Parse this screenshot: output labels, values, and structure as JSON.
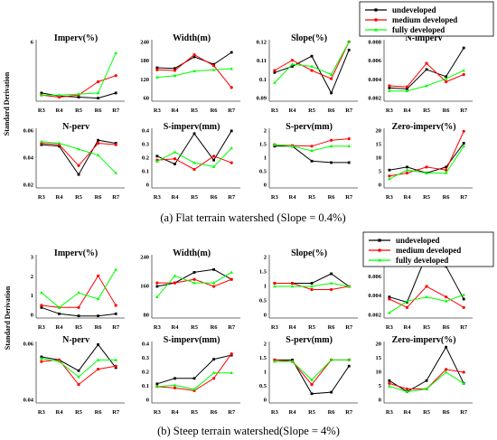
{
  "figure": {
    "sections": [
      {
        "caption": "(a) Flat terrain watershed (Slope = 0.4%)",
        "ylabel": "Standard Derivation"
      },
      {
        "caption": "(b) Steep terrain watershed(Slope = 4%)",
        "ylabel": "Standard Derivation"
      }
    ]
  },
  "colors": {
    "undeveloped": "#000000",
    "medium developed": "#ff0000",
    "fully developed": "#00ff00"
  },
  "chart_data": [
    {
      "section": 0,
      "type": "line",
      "title": "Imperv(%)",
      "categories": [
        "R3",
        "R4",
        "R5",
        "R6",
        "R7"
      ],
      "yticks": [
        "6"
      ],
      "ylim": [
        0,
        6
      ],
      "series": [
        {
          "name": "undeveloped",
          "values": [
            0.8,
            0.5,
            0.4,
            0.3,
            0.8
          ]
        },
        {
          "name": "medium developed",
          "values": [
            0.6,
            0.4,
            0.6,
            1.9,
            2.5
          ]
        },
        {
          "name": "fully developed",
          "values": [
            0.6,
            0.6,
            0.7,
            0.8,
            4.7
          ]
        }
      ]
    },
    {
      "section": 0,
      "type": "line",
      "title": "Width(m)",
      "categories": [
        "R3",
        "R4",
        "R5",
        "R6",
        "R7"
      ],
      "yticks": [
        "240",
        "180",
        "120",
        "60"
      ],
      "ylim": [
        60,
        240
      ],
      "series": [
        {
          "name": "undeveloped",
          "values": [
            158,
            156,
            190,
            168,
            203
          ]
        },
        {
          "name": "medium developed",
          "values": [
            152,
            150,
            196,
            164,
            100
          ]
        },
        {
          "name": "fully developed",
          "values": [
            130,
            135,
            148,
            152,
            155
          ]
        }
      ]
    },
    {
      "section": 0,
      "type": "line",
      "title": "Slope(%)",
      "categories": [
        "R3",
        "R4",
        "R5",
        "R6",
        "R7"
      ],
      "yticks": [
        "0.12",
        "0.11",
        "0.1",
        "0.09"
      ],
      "ylim": [
        0.09,
        0.12
      ],
      "series": [
        {
          "name": "undeveloped",
          "values": [
            0.104,
            0.107,
            0.112,
            0.094,
            0.115
          ]
        },
        {
          "name": "medium developed",
          "values": [
            0.105,
            0.11,
            0.105,
            0.101,
            0.119
          ]
        },
        {
          "name": "fully developed",
          "values": [
            0.099,
            0.108,
            0.107,
            0.103,
            0.119
          ]
        }
      ]
    },
    {
      "section": 0,
      "type": "line",
      "title": "N-imperv",
      "categories": [
        "R3",
        "R4",
        "R5",
        "R6",
        "R7"
      ],
      "yticks": [
        "0.008",
        "0.006",
        "0.004",
        "0.002"
      ],
      "ylim": [
        0.002,
        0.008
      ],
      "series": [
        {
          "name": "undeveloped",
          "values": [
            0.0033,
            0.0032,
            0.0051,
            0.0044,
            0.0072
          ]
        },
        {
          "name": "medium developed",
          "values": [
            0.0035,
            0.0034,
            0.0057,
            0.0039,
            0.0046
          ]
        },
        {
          "name": "fully developed",
          "values": [
            0.003,
            0.003,
            0.0035,
            0.0042,
            0.005
          ]
        }
      ]
    },
    {
      "section": 0,
      "type": "line",
      "title": "N-perv",
      "categories": [
        "R3",
        "R4",
        "R5",
        "R6",
        "R7"
      ],
      "yticks": [
        "0.06",
        "0.04",
        "0.02"
      ],
      "ylim": [
        0.02,
        0.06
      ],
      "series": [
        {
          "name": "undeveloped",
          "values": [
            0.049,
            0.048,
            0.029,
            0.052,
            0.05
          ]
        },
        {
          "name": "medium developed",
          "values": [
            0.05,
            0.049,
            0.035,
            0.05,
            0.049
          ]
        },
        {
          "name": "fully developed",
          "values": [
            0.051,
            0.05,
            0.046,
            0.042,
            0.03
          ]
        }
      ]
    },
    {
      "section": 0,
      "type": "line",
      "title": "S-imperv(mm)",
      "categories": [
        "R3",
        "R4",
        "R5",
        "R6",
        "R7"
      ],
      "yticks": [
        "0.4",
        "0.3",
        "0.2",
        "0.1",
        "0"
      ],
      "ylim": [
        0,
        0.45
      ],
      "series": [
        {
          "name": "undeveloped",
          "values": [
            0.24,
            0.18,
            0.41,
            0.21,
            0.43
          ]
        },
        {
          "name": "medium developed",
          "values": [
            0.21,
            0.22,
            0.14,
            0.24,
            0.19
          ]
        },
        {
          "name": "fully developed",
          "values": [
            0.2,
            0.27,
            0.19,
            0.16,
            0.3
          ]
        }
      ]
    },
    {
      "section": 0,
      "type": "line",
      "title": "S-perv(mm)",
      "categories": [
        "R3",
        "R4",
        "R5",
        "R6",
        "R7"
      ],
      "yticks": [
        "2",
        "1.5",
        "1",
        "0.5",
        "0"
      ],
      "ylim": [
        0,
        2
      ],
      "series": [
        {
          "name": "undeveloped",
          "values": [
            1.4,
            1.4,
            0.9,
            0.85,
            0.85
          ]
        },
        {
          "name": "medium developed",
          "values": [
            1.45,
            1.42,
            1.4,
            1.6,
            1.65
          ]
        },
        {
          "name": "fully developed",
          "values": [
            1.45,
            1.4,
            1.25,
            1.4,
            1.4
          ]
        }
      ]
    },
    {
      "section": 0,
      "type": "line",
      "title": "Zero-imperv(%)",
      "categories": [
        "R3",
        "R4",
        "R5",
        "R6",
        "R7"
      ],
      "yticks": [
        "20",
        "15",
        "10",
        "5",
        "0"
      ],
      "ylim": [
        0,
        20
      ],
      "series": [
        {
          "name": "undeveloped",
          "values": [
            6,
            7,
            5,
            7,
            15
          ]
        },
        {
          "name": "medium developed",
          "values": [
            4,
            5,
            7,
            6,
            19
          ]
        },
        {
          "name": "fully developed",
          "values": [
            3,
            6,
            5,
            5,
            14
          ]
        }
      ]
    },
    {
      "section": 1,
      "type": "line",
      "title": "Imperv(%)",
      "categories": [
        "R3",
        "R4",
        "R5",
        "R6",
        "R7"
      ],
      "yticks": [
        "3",
        "2",
        "1",
        "0"
      ],
      "ylim": [
        0,
        3
      ],
      "series": [
        {
          "name": "undeveloped",
          "values": [
            0.5,
            0.2,
            0.1,
            0.1,
            0.2
          ]
        },
        {
          "name": "medium developed",
          "values": [
            0.6,
            0.5,
            0.5,
            2.0,
            0.6
          ]
        },
        {
          "name": "fully developed",
          "values": [
            1.2,
            0.5,
            1.2,
            0.9,
            2.3
          ]
        }
      ]
    },
    {
      "section": 1,
      "type": "line",
      "title": "Width(m)",
      "categories": [
        "R3",
        "R4",
        "R5",
        "R6",
        "R7"
      ],
      "yticks": [
        "240",
        "160",
        "80"
      ],
      "ylim": [
        60,
        240
      ],
      "series": [
        {
          "name": "undeveloped",
          "values": [
            150,
            160,
            190,
            198,
            170
          ]
        },
        {
          "name": "medium developed",
          "values": [
            160,
            160,
            170,
            150,
            170
          ]
        },
        {
          "name": "fully developed",
          "values": [
            120,
            180,
            160,
            160,
            190
          ]
        }
      ]
    },
    {
      "section": 1,
      "type": "line",
      "title": "Slope(%)",
      "categories": [
        "R3",
        "R4",
        "R5",
        "R6",
        "R7"
      ],
      "yticks": [
        "2",
        "1.5",
        "1",
        "0.5",
        "0"
      ],
      "ylim": [
        0,
        2
      ],
      "series": [
        {
          "name": "undeveloped",
          "values": [
            1.1,
            1.1,
            1.1,
            1.4,
            1.0
          ]
        },
        {
          "name": "medium developed",
          "values": [
            1.1,
            1.1,
            0.9,
            0.9,
            1.0
          ]
        },
        {
          "name": "fully developed",
          "values": [
            1.0,
            1.0,
            1.0,
            1.1,
            1.0
          ]
        }
      ]
    },
    {
      "section": 1,
      "type": "line",
      "title": "N-imperv",
      "categories": [
        "R3",
        "R4",
        "R5",
        "R6",
        "R7"
      ],
      "yticks": [
        "0.008",
        "0.006",
        "0.004",
        "0.002"
      ],
      "ylim": [
        0.002,
        0.008
      ],
      "series": [
        {
          "name": "undeveloped",
          "values": [
            0.004,
            0.0035,
            0.008,
            0.0069,
            0.0038
          ]
        },
        {
          "name": "medium developed",
          "values": [
            0.0038,
            0.003,
            0.005,
            0.004,
            0.003
          ]
        },
        {
          "name": "fully developed",
          "values": [
            0.0025,
            0.0036,
            0.004,
            0.0036,
            0.0042
          ]
        }
      ]
    },
    {
      "section": 1,
      "type": "line",
      "title": "N-perv",
      "categories": [
        "R3",
        "R4",
        "R5",
        "R6",
        "R7"
      ],
      "yticks": [
        "0.06",
        "0.04"
      ],
      "ylim": [
        0.02,
        0.06
      ],
      "series": [
        {
          "name": "undeveloped",
          "values": [
            0.05,
            0.048,
            0.041,
            0.058,
            0.043
          ]
        },
        {
          "name": "medium developed",
          "values": [
            0.047,
            0.048,
            0.032,
            0.042,
            0.044
          ]
        },
        {
          "name": "fully developed",
          "values": [
            0.049,
            0.047,
            0.037,
            0.048,
            0.048
          ]
        }
      ]
    },
    {
      "section": 1,
      "type": "line",
      "title": "S-imperv(mm)",
      "categories": [
        "R3",
        "R4",
        "R5",
        "R6",
        "R7"
      ],
      "yticks": [
        "0.4",
        "0.3",
        "0.2",
        "0.1",
        "0"
      ],
      "ylim": [
        0,
        0.45
      ],
      "series": [
        {
          "name": "undeveloped",
          "values": [
            0.14,
            0.18,
            0.18,
            0.32,
            0.35
          ]
        },
        {
          "name": "medium developed",
          "values": [
            0.12,
            0.11,
            0.09,
            0.18,
            0.36
          ]
        },
        {
          "name": "fully developed",
          "values": [
            0.12,
            0.13,
            0.1,
            0.22,
            0.22
          ]
        }
      ]
    },
    {
      "section": 1,
      "type": "line",
      "title": "S-perv(mm)",
      "categories": [
        "R3",
        "R4",
        "R5",
        "R6",
        "R7"
      ],
      "yticks": [
        "2",
        "1.5",
        "1",
        "0.5",
        "0"
      ],
      "ylim": [
        0,
        2
      ],
      "series": [
        {
          "name": "undeveloped",
          "values": [
            1.4,
            1.4,
            0.3,
            0.35,
            1.2
          ]
        },
        {
          "name": "medium developed",
          "values": [
            1.4,
            1.35,
            0.6,
            1.4,
            1.4
          ]
        },
        {
          "name": "fully developed",
          "values": [
            1.35,
            1.35,
            0.75,
            1.4,
            1.4
          ]
        }
      ]
    },
    {
      "section": 1,
      "type": "line",
      "title": "Zero-imperv(%)",
      "categories": [
        "R3",
        "R4",
        "R5",
        "R6",
        "R7"
      ],
      "yticks": [
        "20",
        "15",
        "10",
        "5",
        "0"
      ],
      "ylim": [
        0,
        22
      ],
      "series": [
        {
          "name": "undeveloped",
          "values": [
            8,
            4,
            8,
            20,
            7
          ]
        },
        {
          "name": "medium developed",
          "values": [
            7,
            5,
            5,
            12,
            11
          ]
        },
        {
          "name": "fully developed",
          "values": [
            6,
            4,
            5,
            11,
            7
          ]
        }
      ]
    }
  ],
  "legends": [
    {
      "section": 0,
      "items": [
        "undeveloped",
        "medium developed",
        "fully developed"
      ]
    },
    {
      "section": 1,
      "items": [
        "undeveloped",
        "medium developed",
        "fully developed"
      ]
    }
  ]
}
